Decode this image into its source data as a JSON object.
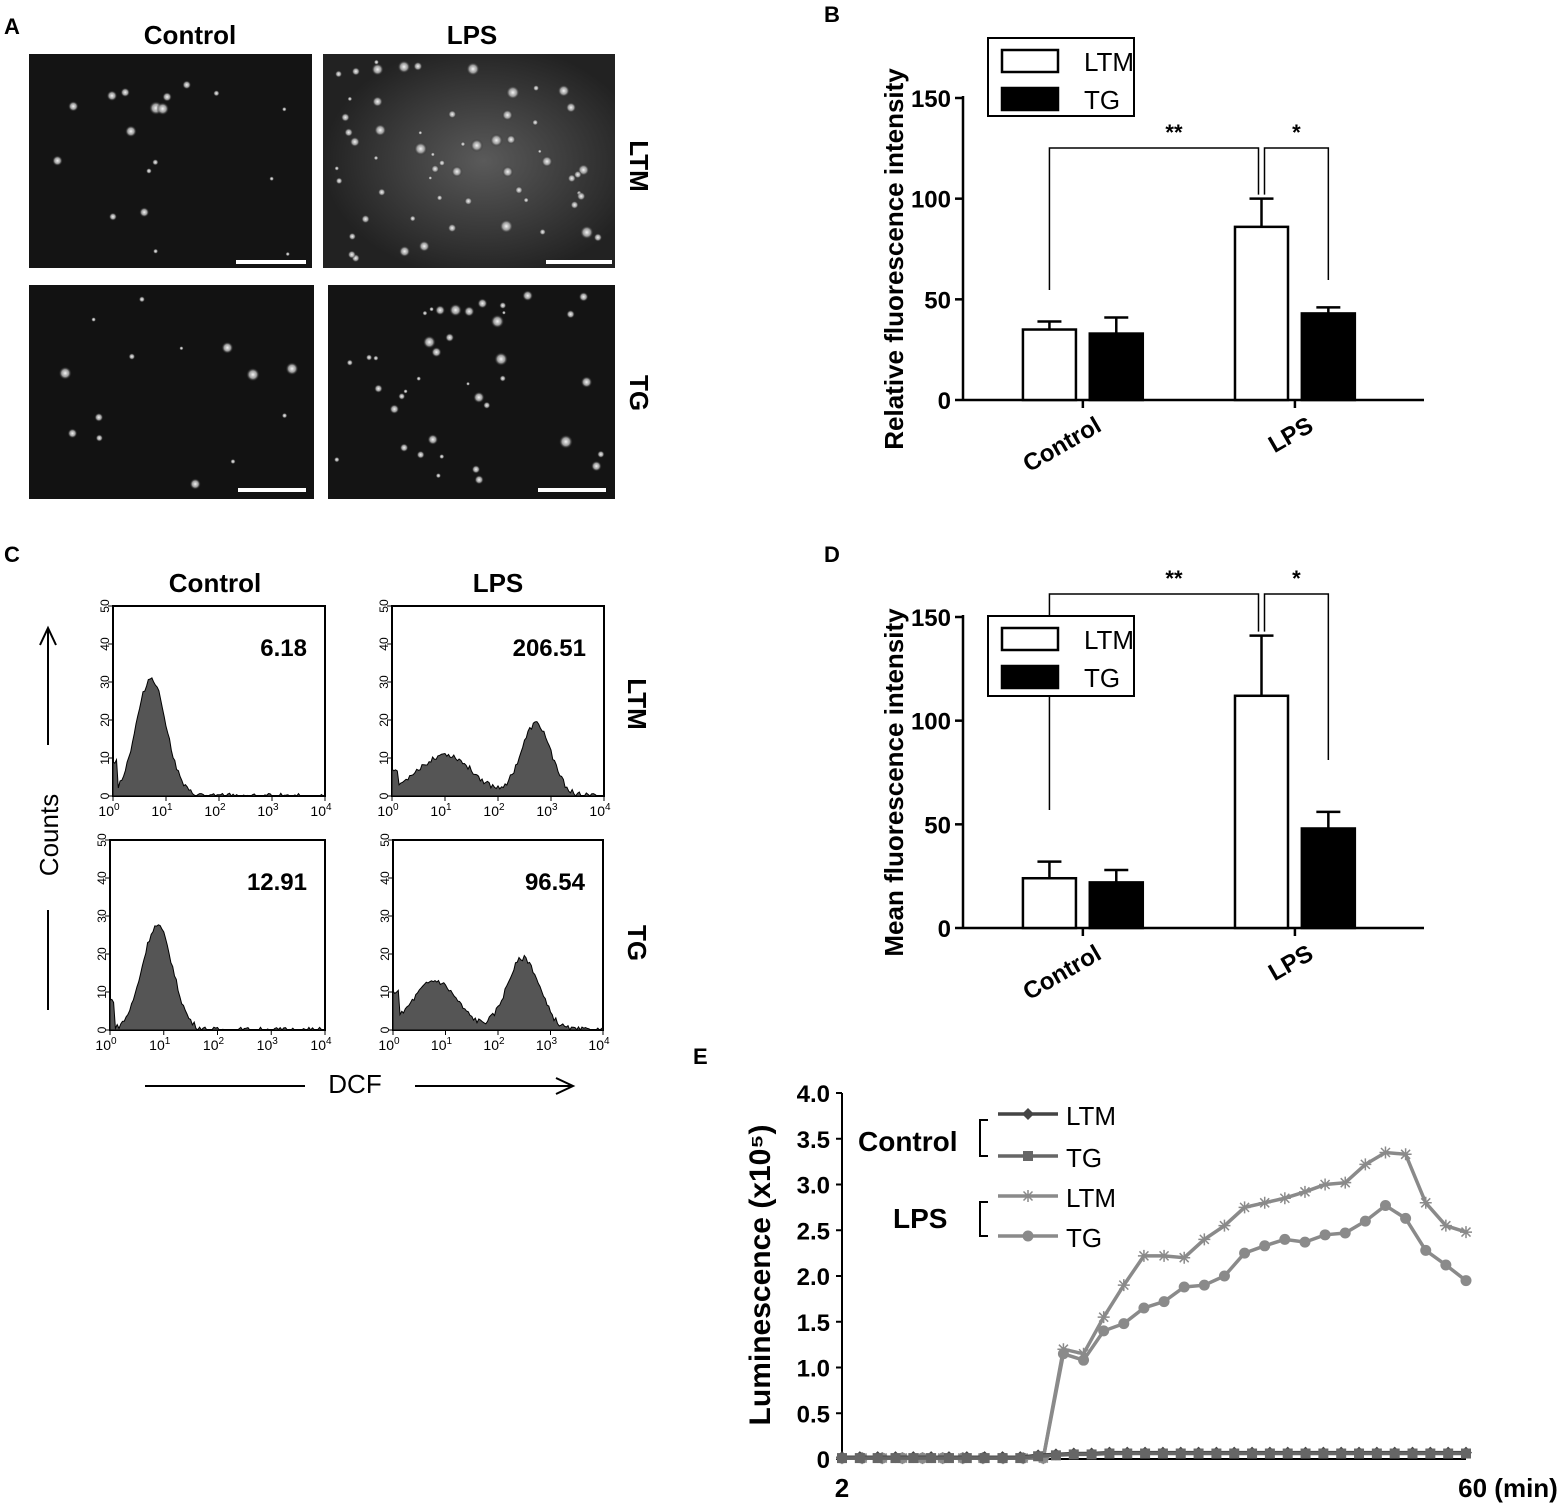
{
  "panels": {
    "A": {
      "letter": "A",
      "col_labels": [
        "Control",
        "LPS"
      ],
      "row_labels": [
        "LTM",
        "TG"
      ]
    },
    "C": {
      "letter": "C",
      "col_labels": [
        "Control",
        "LPS"
      ],
      "row_labels": [
        "LTM",
        "TG"
      ],
      "values": [
        "6.18",
        "206.51",
        "12.91",
        "96.54"
      ],
      "ylabel": "Counts",
      "xlabel": "DCF",
      "yticks": [
        "0",
        "10",
        "20",
        "30",
        "40",
        "50"
      ],
      "xticks_base": "10",
      "xticks_exp": [
        "0",
        "1",
        "2",
        "3",
        "4"
      ]
    }
  },
  "chart_data": [
    {
      "panel": "B",
      "type": "bar",
      "ylabel": "Relative fluorescence intensity",
      "categories": [
        "Control",
        "LPS"
      ],
      "series": [
        {
          "name": "LTM",
          "values": [
            35,
            86
          ],
          "errors": [
            4,
            14
          ],
          "color": "#ffffff"
        },
        {
          "name": "TG",
          "values": [
            33,
            43
          ],
          "errors": [
            8,
            3
          ],
          "color": "#000000"
        }
      ],
      "ylim": [
        0,
        150
      ],
      "yticks": [
        "0",
        "50",
        "100",
        "150"
      ],
      "legend": "top-left",
      "significance": [
        "**",
        "*"
      ]
    },
    {
      "panel": "D",
      "type": "bar",
      "ylabel": "Mean fluorescence intensity",
      "categories": [
        "Control",
        "LPS"
      ],
      "series": [
        {
          "name": "LTM",
          "values": [
            24,
            112
          ],
          "errors": [
            8,
            29
          ],
          "color": "#ffffff"
        },
        {
          "name": "TG",
          "values": [
            22,
            48
          ],
          "errors": [
            6,
            8
          ],
          "color": "#000000"
        }
      ],
      "ylim": [
        0,
        150
      ],
      "yticks": [
        "0",
        "50",
        "100",
        "150"
      ],
      "legend": "top-left",
      "significance": [
        "**",
        "*"
      ]
    },
    {
      "panel": "E",
      "type": "line",
      "ylabel": "Luminescence (x10⁵)",
      "x_start_label": "2",
      "x_end_label": "60 (min)",
      "ylim": [
        0,
        4.0
      ],
      "yticks": [
        "0",
        "0.5",
        "1.0",
        "1.5",
        "2.0",
        "2.5",
        "3.0",
        "3.5",
        "4.0"
      ],
      "group_labels": [
        "Control",
        "LPS"
      ],
      "series": [
        {
          "name": "LTM",
          "group": "Control",
          "marker": "diamond",
          "color": "#444444",
          "values": [
            0.02,
            0.02,
            0.02,
            0.02,
            0.02,
            0.02,
            0.02,
            0.02,
            0.02,
            0.02,
            0.02,
            0.04,
            0.05,
            0.06,
            0.06,
            0.07,
            0.07,
            0.07,
            0.07,
            0.07,
            0.07,
            0.07,
            0.07,
            0.07,
            0.07,
            0.07,
            0.07,
            0.07,
            0.07,
            0.07,
            0.07,
            0.07,
            0.07,
            0.07,
            0.07,
            0.07
          ]
        },
        {
          "name": "TG",
          "group": "Control",
          "marker": "square",
          "color": "#666666",
          "values": [
            0.01,
            0.01,
            0.01,
            0.01,
            0.01,
            0.01,
            0.01,
            0.01,
            0.01,
            0.01,
            0.01,
            0.03,
            0.04,
            0.05,
            0.05,
            0.06,
            0.06,
            0.06,
            0.06,
            0.06,
            0.06,
            0.06,
            0.06,
            0.06,
            0.06,
            0.06,
            0.06,
            0.06,
            0.06,
            0.06,
            0.06,
            0.06,
            0.06,
            0.06,
            0.06,
            0.06
          ]
        },
        {
          "name": "LTM",
          "group": "LPS",
          "marker": "asterisk",
          "color": "#8a8a8a",
          "values": [
            0.01,
            0.01,
            0.01,
            0.01,
            0.01,
            0.01,
            0.01,
            0.01,
            0.01,
            0.01,
            0.01,
            1.2,
            1.15,
            1.55,
            1.9,
            2.22,
            2.22,
            2.2,
            2.4,
            2.55,
            2.75,
            2.8,
            2.85,
            2.92,
            3.0,
            3.02,
            3.22,
            3.35,
            3.33,
            2.8,
            2.55,
            2.48
          ]
        },
        {
          "name": "TG",
          "group": "LPS",
          "marker": "circle",
          "color": "#8a8a8a",
          "values": [
            0.01,
            0.01,
            0.01,
            0.01,
            0.01,
            0.01,
            0.01,
            0.01,
            0.01,
            0.01,
            0.01,
            1.15,
            1.08,
            1.4,
            1.48,
            1.65,
            1.72,
            1.88,
            1.9,
            2.0,
            2.25,
            2.33,
            2.4,
            2.37,
            2.45,
            2.47,
            2.6,
            2.77,
            2.63,
            2.28,
            2.12,
            1.95
          ]
        }
      ]
    }
  ]
}
